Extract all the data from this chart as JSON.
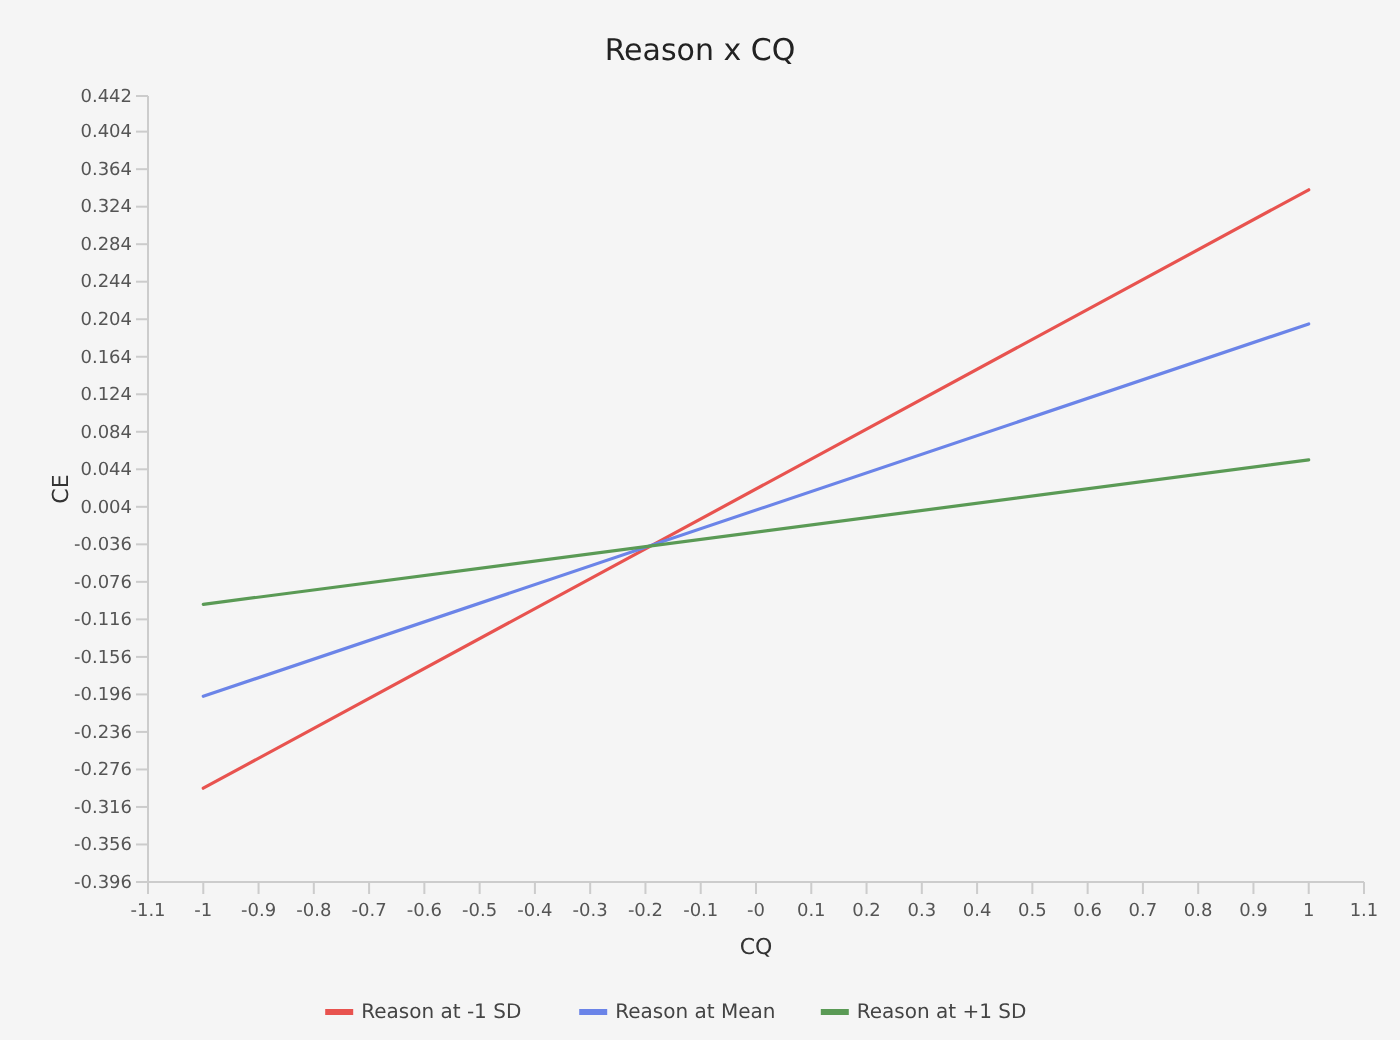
{
  "chart_data": {
    "type": "line",
    "title": "Reason x CQ",
    "xlabel": "CQ",
    "ylabel": "CE",
    "x": [
      -1,
      1
    ],
    "series": [
      {
        "name": "Reason at -1 SD",
        "color": "#e8534f",
        "values": [
          -0.296,
          0.342
        ]
      },
      {
        "name": "Reason at Mean",
        "color": "#6b84e8",
        "values": [
          -0.198,
          0.199
        ]
      },
      {
        "name": "Reason at +1 SD",
        "color": "#5a9a55",
        "values": [
          -0.1,
          0.054
        ]
      }
    ],
    "xlim": [
      -1.1,
      1.1
    ],
    "xticks": [
      -1.1,
      -1,
      -0.9,
      -0.8,
      -0.7,
      -0.6,
      -0.5,
      -0.4,
      -0.3,
      -0.2,
      -0.1,
      {
        "value": 0,
        "label": "-0"
      },
      0.1,
      0.2,
      0.3,
      0.4,
      0.5,
      0.6,
      0.7,
      0.8,
      0.9,
      1,
      1.1
    ],
    "ylim": [
      -0.396,
      0.442
    ],
    "yticks": [
      -0.396,
      -0.356,
      -0.316,
      -0.276,
      -0.236,
      -0.196,
      -0.156,
      -0.116,
      -0.076,
      -0.036,
      0.004,
      0.044,
      0.084,
      0.124,
      0.164,
      0.204,
      0.244,
      0.284,
      0.324,
      0.364,
      0.404,
      0.442
    ],
    "grid": false,
    "legend": "bottom",
    "marker": "none",
    "line_style": "solid"
  }
}
